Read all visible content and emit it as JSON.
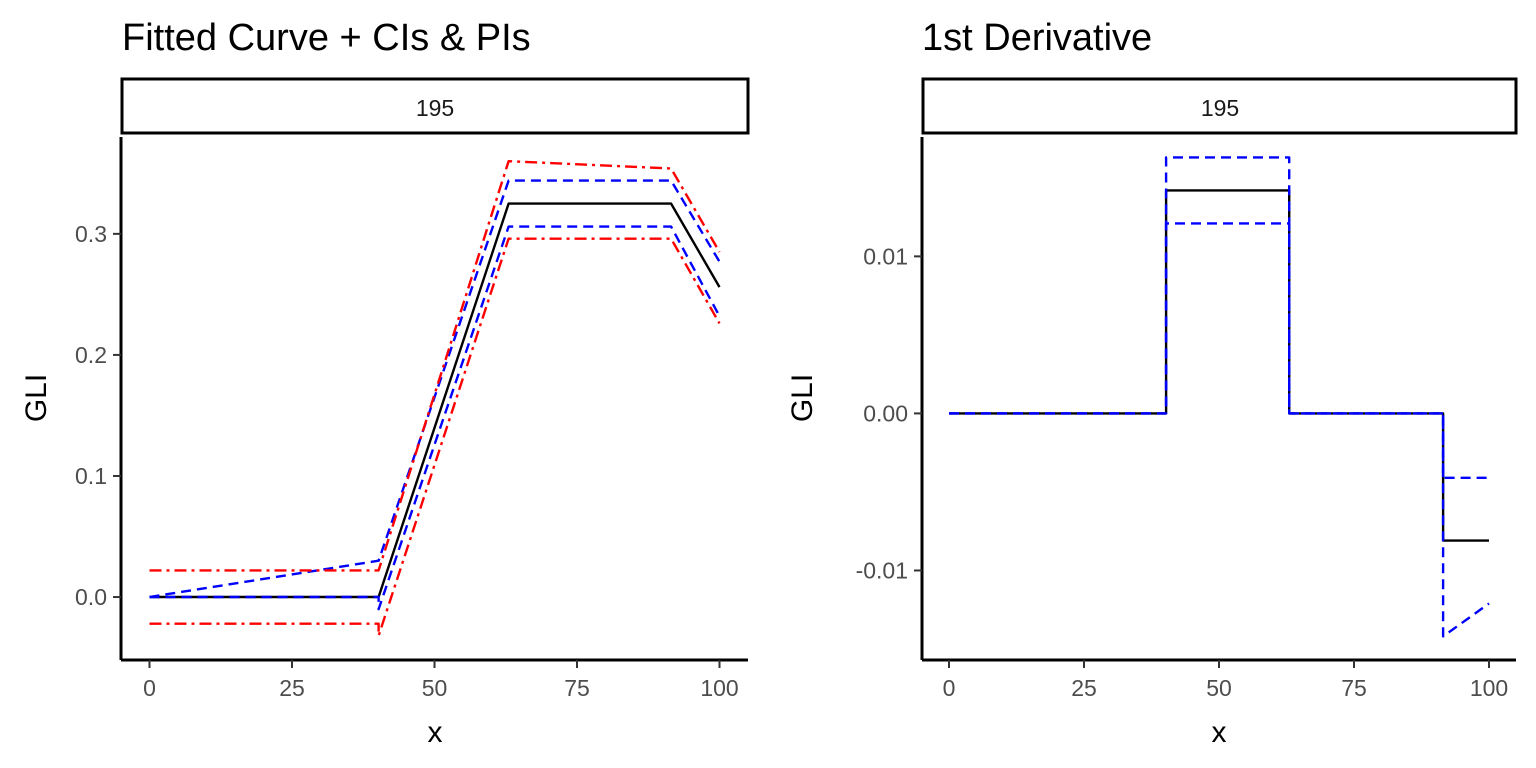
{
  "chart_data": [
    {
      "type": "line",
      "title": "Fitted Curve + CIs & PIs",
      "facet_label": "195",
      "xlabel": "x",
      "ylabel": "GLI",
      "xlim": [
        -5,
        105
      ],
      "ylim": [
        -0.052,
        0.38
      ],
      "xticks": [
        0,
        25,
        50,
        75,
        100
      ],
      "yticks": [
        0.0,
        0.1,
        0.2,
        0.3
      ],
      "ytick_labels": [
        "0.0",
        "0.1",
        "0.2",
        "0.3"
      ],
      "series": [
        {
          "name": "fit",
          "color": "#000000",
          "dash": "solid",
          "x": [
            0,
            40.2,
            63,
            91.5,
            100
          ],
          "y": [
            0,
            0,
            0.325,
            0.325,
            0.256
          ]
        },
        {
          "name": "ci_upper",
          "color": "#0000ff",
          "dash": "dashed",
          "x": [
            0,
            40.2,
            63,
            91.5,
            100
          ],
          "y": [
            0,
            0.03,
            0.344,
            0.344,
            0.277
          ]
        },
        {
          "name": "ci_lower",
          "color": "#0000ff",
          "dash": "dashed",
          "x": [
            0,
            40.2,
            40.2,
            63,
            91.5,
            100
          ],
          "y": [
            0,
            0,
            -0.01,
            0.306,
            0.306,
            0.232
          ]
        },
        {
          "name": "pi_upper",
          "color": "#ff0000",
          "dash": "dotdash",
          "x": [
            0,
            40.2,
            63,
            91.5,
            100
          ],
          "y": [
            0.022,
            0.022,
            0.36,
            0.354,
            0.285
          ]
        },
        {
          "name": "pi_lower",
          "color": "#ff0000",
          "dash": "dotdash",
          "x": [
            0,
            40.2,
            40.2,
            63,
            91.5,
            100
          ],
          "y": [
            -0.022,
            -0.022,
            -0.032,
            0.296,
            0.296,
            0.226
          ]
        }
      ]
    },
    {
      "type": "line",
      "title": "1st Derivative",
      "facet_label": "195",
      "xlabel": "x",
      "ylabel": "GLI",
      "xlim": [
        -5,
        105
      ],
      "ylim": [
        -0.0157,
        0.0176
      ],
      "xticks": [
        0,
        25,
        50,
        75,
        100
      ],
      "yticks": [
        -0.01,
        0.0,
        0.01
      ],
      "ytick_labels": [
        "-0.01",
        "0.00",
        "0.01"
      ],
      "series": [
        {
          "name": "derivative",
          "color": "#000000",
          "dash": "solid",
          "x": [
            0,
            40.2,
            40.2,
            63,
            63,
            91.5,
            91.5,
            100
          ],
          "y": [
            0,
            0,
            0.0142,
            0.0142,
            0,
            0,
            -0.0081,
            -0.0081
          ]
        },
        {
          "name": "ci_upper",
          "color": "#0000ff",
          "dash": "dashed",
          "x": [
            0,
            40.2,
            40.2,
            63,
            63,
            91.5,
            91.5,
            100
          ],
          "y": [
            0,
            0,
            0.0163,
            0.0163,
            0,
            0,
            -0.0041,
            -0.0041
          ]
        },
        {
          "name": "ci_lower",
          "color": "#0000ff",
          "dash": "dashed",
          "x": [
            0,
            40.2,
            40.2,
            63,
            63,
            91.5,
            91.5,
            100
          ],
          "y": [
            0,
            0,
            0.0121,
            0.0121,
            0,
            0,
            -0.0142,
            -0.0121
          ]
        }
      ]
    }
  ]
}
